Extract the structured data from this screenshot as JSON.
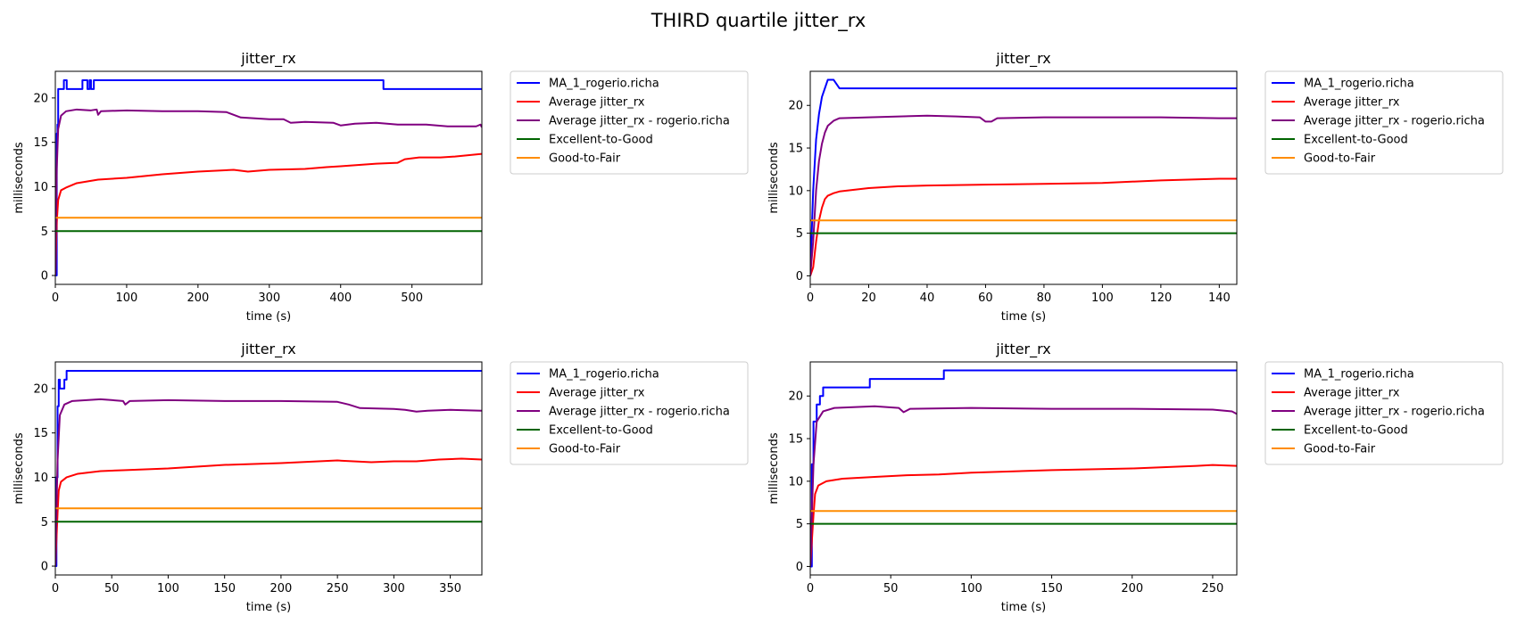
{
  "figure": {
    "suptitle": "THIRD quartile jitter_rx"
  },
  "legend_labels": [
    "MA_1_rogerio.richa",
    "Average jitter_rx",
    "Average jitter_rx - rogerio.richa",
    "Excellent-to-Good",
    "Good-to-Fair"
  ],
  "colors": {
    "ma": "#0000ff",
    "avg": "#ff0000",
    "avg_user": "#800080",
    "excellent_to_good": "#006400",
    "good_to_fair": "#ff8c00"
  },
  "chart_data": [
    {
      "type": "line",
      "title": "jitter_rx",
      "xlabel": "time (s)",
      "ylabel": "milliseconds",
      "xlim": [
        0,
        598
      ],
      "ylim": [
        -1,
        23
      ],
      "xticks": [
        0,
        100,
        200,
        300,
        400,
        500
      ],
      "yticks": [
        0,
        5,
        10,
        15,
        20
      ],
      "legend_position": "outside-right",
      "series": [
        {
          "name": "MA_1_rogerio.richa",
          "color": "#0000ff",
          "step": true,
          "points": [
            [
              0,
              0
            ],
            [
              2,
              16
            ],
            [
              3,
              17
            ],
            [
              4,
              21
            ],
            [
              12,
              22
            ],
            [
              16,
              21
            ],
            [
              35,
              21
            ],
            [
              38,
              22
            ],
            [
              45,
              21
            ],
            [
              48,
              22
            ],
            [
              50,
              21
            ],
            [
              52,
              21
            ],
            [
              54,
              22
            ],
            [
              458,
              22
            ],
            [
              460,
              21
            ],
            [
              598,
              21
            ]
          ]
        },
        {
          "name": "Average jitter_rx",
          "color": "#ff0000",
          "points": [
            [
              0,
              0
            ],
            [
              2,
              6
            ],
            [
              4,
              8.5
            ],
            [
              8,
              9.6
            ],
            [
              15,
              9.9
            ],
            [
              30,
              10.4
            ],
            [
              60,
              10.8
            ],
            [
              100,
              11
            ],
            [
              150,
              11.4
            ],
            [
              200,
              11.7
            ],
            [
              250,
              11.9
            ],
            [
              270,
              11.7
            ],
            [
              300,
              11.9
            ],
            [
              350,
              12
            ],
            [
              380,
              12.2
            ],
            [
              400,
              12.3
            ],
            [
              450,
              12.6
            ],
            [
              480,
              12.7
            ],
            [
              490,
              13.1
            ],
            [
              510,
              13.3
            ],
            [
              540,
              13.3
            ],
            [
              560,
              13.4
            ],
            [
              598,
              13.7
            ]
          ]
        },
        {
          "name": "Average jitter_rx - rogerio.richa",
          "color": "#800080",
          "points": [
            [
              0,
              0
            ],
            [
              2,
              12
            ],
            [
              4,
              16.5
            ],
            [
              8,
              18
            ],
            [
              15,
              18.5
            ],
            [
              30,
              18.7
            ],
            [
              50,
              18.6
            ],
            [
              58,
              18.7
            ],
            [
              60,
              18.1
            ],
            [
              64,
              18.5
            ],
            [
              100,
              18.6
            ],
            [
              150,
              18.5
            ],
            [
              200,
              18.5
            ],
            [
              240,
              18.4
            ],
            [
              260,
              17.8
            ],
            [
              300,
              17.6
            ],
            [
              320,
              17.6
            ],
            [
              330,
              17.2
            ],
            [
              350,
              17.3
            ],
            [
              390,
              17.2
            ],
            [
              400,
              16.9
            ],
            [
              420,
              17.1
            ],
            [
              450,
              17.2
            ],
            [
              480,
              17
            ],
            [
              520,
              17
            ],
            [
              550,
              16.8
            ],
            [
              590,
              16.8
            ],
            [
              596,
              17
            ],
            [
              598,
              16.7
            ]
          ]
        },
        {
          "name": "Excellent-to-Good",
          "color": "#006400",
          "points": [
            [
              0,
              5
            ],
            [
              598,
              5
            ]
          ]
        },
        {
          "name": "Good-to-Fair",
          "color": "#ff8c00",
          "points": [
            [
              0,
              6.5
            ],
            [
              598,
              6.5
            ]
          ]
        }
      ]
    },
    {
      "type": "line",
      "title": "jitter_rx",
      "xlabel": "time (s)",
      "ylabel": "milliseconds",
      "xlim": [
        0,
        146
      ],
      "ylim": [
        -1,
        24
      ],
      "xticks": [
        0,
        20,
        40,
        60,
        80,
        100,
        120,
        140
      ],
      "yticks": [
        0,
        5,
        10,
        15,
        20
      ],
      "legend_position": "outside-right",
      "series": [
        {
          "name": "MA_1_rogerio.richa",
          "color": "#0000ff",
          "points": [
            [
              0,
              0
            ],
            [
              0.5,
              5
            ],
            [
              1,
              10
            ],
            [
              2,
              16
            ],
            [
              3,
              19
            ],
            [
              4,
              21
            ],
            [
              5,
              22
            ],
            [
              6,
              23
            ],
            [
              8,
              23
            ],
            [
              9,
              22.5
            ],
            [
              10,
              22
            ],
            [
              146,
              22
            ]
          ]
        },
        {
          "name": "Average jitter_rx",
          "color": "#ff0000",
          "points": [
            [
              0,
              0
            ],
            [
              1,
              1
            ],
            [
              2,
              4
            ],
            [
              3,
              6.5
            ],
            [
              4,
              8
            ],
            [
              5,
              9
            ],
            [
              6,
              9.4
            ],
            [
              8,
              9.7
            ],
            [
              10,
              9.9
            ],
            [
              15,
              10.1
            ],
            [
              20,
              10.3
            ],
            [
              30,
              10.5
            ],
            [
              40,
              10.6
            ],
            [
              60,
              10.7
            ],
            [
              80,
              10.8
            ],
            [
              100,
              10.9
            ],
            [
              120,
              11.2
            ],
            [
              140,
              11.4
            ],
            [
              146,
              11.4
            ]
          ]
        },
        {
          "name": "Average jitter_rx - rogerio.richa",
          "color": "#800080",
          "points": [
            [
              0,
              0
            ],
            [
              1,
              4
            ],
            [
              2,
              10
            ],
            [
              3,
              13.5
            ],
            [
              4,
              15.5
            ],
            [
              5,
              16.8
            ],
            [
              6,
              17.6
            ],
            [
              8,
              18.2
            ],
            [
              10,
              18.5
            ],
            [
              20,
              18.6
            ],
            [
              40,
              18.8
            ],
            [
              50,
              18.7
            ],
            [
              58,
              18.6
            ],
            [
              60,
              18.1
            ],
            [
              62,
              18.1
            ],
            [
              64,
              18.5
            ],
            [
              80,
              18.6
            ],
            [
              100,
              18.6
            ],
            [
              120,
              18.6
            ],
            [
              140,
              18.5
            ],
            [
              146,
              18.5
            ]
          ]
        },
        {
          "name": "Excellent-to-Good",
          "color": "#006400",
          "points": [
            [
              0,
              5
            ],
            [
              146,
              5
            ]
          ]
        },
        {
          "name": "Good-to-Fair",
          "color": "#ff8c00",
          "points": [
            [
              0,
              6.5
            ],
            [
              146,
              6.5
            ]
          ]
        }
      ]
    },
    {
      "type": "line",
      "title": "jitter_rx",
      "xlabel": "time (s)",
      "ylabel": "milliseconds",
      "xlim": [
        0,
        378
      ],
      "ylim": [
        -1,
        23
      ],
      "xticks": [
        0,
        50,
        100,
        150,
        200,
        250,
        300,
        350
      ],
      "yticks": [
        0,
        5,
        10,
        15,
        20
      ],
      "legend_position": "outside-right",
      "series": [
        {
          "name": "MA_1_rogerio.richa",
          "color": "#0000ff",
          "step": true,
          "points": [
            [
              0,
              0
            ],
            [
              1,
              10
            ],
            [
              2,
              18
            ],
            [
              3,
              21
            ],
            [
              4,
              20
            ],
            [
              8,
              21
            ],
            [
              10,
              22
            ],
            [
              378,
              22
            ]
          ]
        },
        {
          "name": "Average jitter_rx",
          "color": "#ff0000",
          "points": [
            [
              0,
              0
            ],
            [
              1,
              3
            ],
            [
              2,
              6
            ],
            [
              3,
              8.5
            ],
            [
              5,
              9.5
            ],
            [
              10,
              10
            ],
            [
              20,
              10.4
            ],
            [
              40,
              10.7
            ],
            [
              60,
              10.8
            ],
            [
              100,
              11
            ],
            [
              150,
              11.4
            ],
            [
              200,
              11.6
            ],
            [
              250,
              11.9
            ],
            [
              280,
              11.7
            ],
            [
              300,
              11.8
            ],
            [
              320,
              11.8
            ],
            [
              340,
              12
            ],
            [
              360,
              12.1
            ],
            [
              378,
              12
            ]
          ]
        },
        {
          "name": "Average jitter_rx - rogerio.richa",
          "color": "#800080",
          "points": [
            [
              0,
              0
            ],
            [
              1,
              6
            ],
            [
              2,
              12
            ],
            [
              4,
              17
            ],
            [
              8,
              18.2
            ],
            [
              15,
              18.6
            ],
            [
              40,
              18.8
            ],
            [
              60,
              18.6
            ],
            [
              62,
              18.2
            ],
            [
              66,
              18.6
            ],
            [
              100,
              18.7
            ],
            [
              150,
              18.6
            ],
            [
              200,
              18.6
            ],
            [
              250,
              18.5
            ],
            [
              260,
              18.2
            ],
            [
              270,
              17.8
            ],
            [
              300,
              17.7
            ],
            [
              310,
              17.6
            ],
            [
              320,
              17.4
            ],
            [
              330,
              17.5
            ],
            [
              350,
              17.6
            ],
            [
              378,
              17.5
            ]
          ]
        },
        {
          "name": "Excellent-to-Good",
          "color": "#006400",
          "points": [
            [
              0,
              5
            ],
            [
              378,
              5
            ]
          ]
        },
        {
          "name": "Good-to-Fair",
          "color": "#ff8c00",
          "points": [
            [
              0,
              6.5
            ],
            [
              378,
              6.5
            ]
          ]
        }
      ]
    },
    {
      "type": "line",
      "title": "jitter_rx",
      "xlabel": "time (s)",
      "ylabel": "milliseconds",
      "xlim": [
        0,
        265
      ],
      "ylim": [
        -1,
        24
      ],
      "xticks": [
        0,
        50,
        100,
        150,
        200,
        250
      ],
      "yticks": [
        0,
        5,
        10,
        15,
        20
      ],
      "legend_position": "outside-right",
      "series": [
        {
          "name": "MA_1_rogerio.richa",
          "color": "#0000ff",
          "step": true,
          "points": [
            [
              0,
              0
            ],
            [
              1,
              12
            ],
            [
              2,
              17
            ],
            [
              4,
              19
            ],
            [
              6,
              20
            ],
            [
              8,
              21
            ],
            [
              36,
              21
            ],
            [
              37,
              22
            ],
            [
              82,
              22
            ],
            [
              83,
              23
            ],
            [
              265,
              23
            ]
          ]
        },
        {
          "name": "Average jitter_rx",
          "color": "#ff0000",
          "points": [
            [
              0,
              0
            ],
            [
              1,
              3
            ],
            [
              2,
              6
            ],
            [
              3,
              8.5
            ],
            [
              5,
              9.5
            ],
            [
              10,
              10
            ],
            [
              20,
              10.3
            ],
            [
              40,
              10.5
            ],
            [
              60,
              10.7
            ],
            [
              80,
              10.8
            ],
            [
              100,
              11
            ],
            [
              150,
              11.3
            ],
            [
              200,
              11.5
            ],
            [
              240,
              11.8
            ],
            [
              250,
              11.9
            ],
            [
              265,
              11.8
            ]
          ]
        },
        {
          "name": "Average jitter_rx - rogerio.richa",
          "color": "#800080",
          "points": [
            [
              0,
              0
            ],
            [
              1,
              6
            ],
            [
              2,
              12
            ],
            [
              4,
              17
            ],
            [
              8,
              18.2
            ],
            [
              15,
              18.6
            ],
            [
              40,
              18.8
            ],
            [
              55,
              18.6
            ],
            [
              58,
              18.1
            ],
            [
              62,
              18.5
            ],
            [
              100,
              18.6
            ],
            [
              150,
              18.5
            ],
            [
              200,
              18.5
            ],
            [
              250,
              18.4
            ],
            [
              262,
              18.2
            ],
            [
              265,
              17.9
            ]
          ]
        },
        {
          "name": "Excellent-to-Good",
          "color": "#006400",
          "points": [
            [
              0,
              5
            ],
            [
              265,
              5
            ]
          ]
        },
        {
          "name": "Good-to-Fair",
          "color": "#ff8c00",
          "points": [
            [
              0,
              6.5
            ],
            [
              265,
              6.5
            ]
          ]
        }
      ]
    }
  ]
}
